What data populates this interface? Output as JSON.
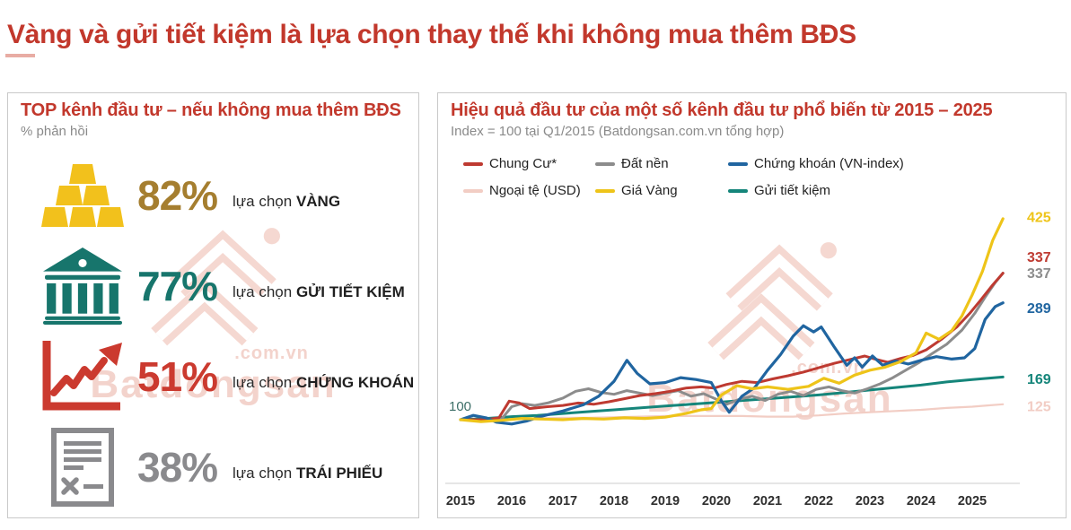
{
  "page_title": "Vàng và gửi tiết kiệm là lựa chọn thay thế khi không mua thêm BĐS",
  "colors": {
    "accent_red": "#c2382c",
    "panel_border": "#c9c9c9",
    "watermark_pink": "#f3d3cc",
    "subtitle_gray": "#8a8a8a"
  },
  "watermark": {
    "brand": "Batdongsan",
    "suffix": ".com.vn"
  },
  "left_panel": {
    "title": "TOP kênh đầu tư – nếu không mua thêm BĐS",
    "subtitle": "% phản hồi",
    "items": [
      {
        "percent": "82%",
        "prefix": "lựa chọn",
        "label": "VÀNG",
        "color": "#a57e2f",
        "icon": "gold-bars-icon"
      },
      {
        "percent": "77%",
        "prefix": "lựa chọn",
        "label": "GỬI TIẾT KIỆM",
        "color": "#17756c",
        "icon": "bank-icon"
      },
      {
        "percent": "51%",
        "prefix": "lựa chọn",
        "label": "CHỨNG KHOÁN",
        "color": "#cb3a2f",
        "icon": "stock-chart-icon"
      },
      {
        "percent": "38%",
        "prefix": "lựa chọn",
        "label": "TRÁI PHIẾU",
        "color": "#8a8a8d",
        "icon": "bond-document-icon"
      }
    ]
  },
  "chart_data": {
    "type": "line",
    "title": "Hiệu quả đầu tư của một số kênh đầu tư phổ biến từ 2015 – 2025",
    "subtitle": "Index = 100 tại Q1/2015 (Batdongsan.com.vn tổng hợp)",
    "baseline_label": "100",
    "baseline_value": 100,
    "x_range": [
      2015,
      2025.6
    ],
    "x_ticks": [
      2015,
      2016,
      2017,
      2018,
      2019,
      2020,
      2021,
      2022,
      2023,
      2024,
      2025
    ],
    "grid": false,
    "legend_position": "top",
    "legend": [
      {
        "label": "Chung Cư*",
        "color": "#be3a31"
      },
      {
        "label": "Đất nền",
        "color": "#8c8c8c"
      },
      {
        "label": "Chứng khoán (VN-index)",
        "color": "#2065a0"
      },
      {
        "label": "Ngoại tệ (USD)",
        "color": "#f2cdc4"
      },
      {
        "label": "Giá Vàng",
        "color": "#eec419"
      },
      {
        "label": "Gửi tiết kiệm",
        "color": "#15857a"
      }
    ],
    "series": [
      {
        "name": "Ngoại tệ (USD)",
        "color": "#f2cdc4",
        "stroke_width": 2.2,
        "end_label": 125,
        "end_label_dy": 2,
        "points": [
          [
            2015,
            100
          ],
          [
            2015.5,
            101
          ],
          [
            2016,
            102
          ],
          [
            2016.5,
            102
          ],
          [
            2017,
            103
          ],
          [
            2017.5,
            103
          ],
          [
            2018,
            104
          ],
          [
            2018.5,
            105
          ],
          [
            2019,
            106
          ],
          [
            2019.5,
            106
          ],
          [
            2020,
            106
          ],
          [
            2020.5,
            106
          ],
          [
            2021,
            105
          ],
          [
            2021.5,
            105
          ],
          [
            2022,
            107
          ],
          [
            2022.5,
            110
          ],
          [
            2023,
            112
          ],
          [
            2023.5,
            114
          ],
          [
            2024,
            116
          ],
          [
            2024.5,
            119
          ],
          [
            2025,
            121
          ],
          [
            2025.3,
            123
          ],
          [
            2025.6,
            125
          ]
        ]
      },
      {
        "name": "Gửi tiết kiệm",
        "color": "#15857a",
        "stroke_width": 3,
        "end_label": 169,
        "end_label_dy": 2,
        "points": [
          [
            2015,
            100
          ],
          [
            2015.5,
            102
          ],
          [
            2016,
            105
          ],
          [
            2016.5,
            107
          ],
          [
            2017,
            110
          ],
          [
            2017.5,
            113
          ],
          [
            2018,
            116
          ],
          [
            2018.5,
            119
          ],
          [
            2019,
            122
          ],
          [
            2019.5,
            125
          ],
          [
            2020,
            128
          ],
          [
            2020.5,
            131
          ],
          [
            2021,
            134
          ],
          [
            2021.5,
            137
          ],
          [
            2022,
            140
          ],
          [
            2022.5,
            144
          ],
          [
            2023,
            148
          ],
          [
            2023.5,
            152
          ],
          [
            2024,
            156
          ],
          [
            2024.5,
            161
          ],
          [
            2025,
            165
          ],
          [
            2025.6,
            169
          ]
        ]
      },
      {
        "name": "Đất nền",
        "color": "#8c8c8c",
        "stroke_width": 3,
        "end_label": 337,
        "end_label_dy": 0,
        "points": [
          [
            2015,
            100
          ],
          [
            2015.55,
            100
          ],
          [
            2015.8,
            101
          ],
          [
            2016,
            121
          ],
          [
            2016.2,
            126
          ],
          [
            2016.45,
            123
          ],
          [
            2016.7,
            127
          ],
          [
            2017,
            135
          ],
          [
            2017.25,
            146
          ],
          [
            2017.5,
            150
          ],
          [
            2017.75,
            144
          ],
          [
            2018,
            141
          ],
          [
            2018.25,
            147
          ],
          [
            2018.5,
            143
          ],
          [
            2018.75,
            139
          ],
          [
            2019,
            143
          ],
          [
            2019.25,
            147
          ],
          [
            2019.5,
            138
          ],
          [
            2019.75,
            142
          ],
          [
            2020,
            133
          ],
          [
            2020.2,
            125
          ],
          [
            2020.45,
            133
          ],
          [
            2020.7,
            138
          ],
          [
            2020.95,
            131
          ],
          [
            2021.2,
            141
          ],
          [
            2021.45,
            146
          ],
          [
            2021.7,
            139
          ],
          [
            2021.95,
            149
          ],
          [
            2022.2,
            153
          ],
          [
            2022.45,
            147
          ],
          [
            2022.7,
            143
          ],
          [
            2022.95,
            150
          ],
          [
            2023.2,
            158
          ],
          [
            2023.45,
            168
          ],
          [
            2023.7,
            180
          ],
          [
            2023.95,
            192
          ],
          [
            2024.2,
            206
          ],
          [
            2024.5,
            222
          ],
          [
            2024.8,
            245
          ],
          [
            2025.05,
            272
          ],
          [
            2025.25,
            298
          ],
          [
            2025.45,
            322
          ],
          [
            2025.6,
            337
          ]
        ]
      },
      {
        "name": "Chung Cư*",
        "color": "#be3a31",
        "stroke_width": 3,
        "end_label": 337,
        "end_label_dy": -18,
        "points": [
          [
            2015,
            100
          ],
          [
            2015.5,
            100
          ],
          [
            2015.75,
            103
          ],
          [
            2015.95,
            130
          ],
          [
            2016.15,
            127
          ],
          [
            2016.35,
            118
          ],
          [
            2016.7,
            121
          ],
          [
            2017,
            123
          ],
          [
            2017.3,
            127
          ],
          [
            2017.6,
            125
          ],
          [
            2017.9,
            129
          ],
          [
            2018.2,
            134
          ],
          [
            2018.5,
            139
          ],
          [
            2018.8,
            142
          ],
          [
            2019.1,
            146
          ],
          [
            2019.4,
            151
          ],
          [
            2019.7,
            153
          ],
          [
            2019.95,
            151
          ],
          [
            2020.2,
            157
          ],
          [
            2020.5,
            162
          ],
          [
            2020.8,
            160
          ],
          [
            2021.1,
            166
          ],
          [
            2021.4,
            171
          ],
          [
            2021.7,
            177
          ],
          [
            2022,
            184
          ],
          [
            2022.3,
            191
          ],
          [
            2022.6,
            197
          ],
          [
            2022.9,
            203
          ],
          [
            2023.1,
            198
          ],
          [
            2023.35,
            193
          ],
          [
            2023.6,
            199
          ],
          [
            2023.85,
            204
          ],
          [
            2024.1,
            213
          ],
          [
            2024.4,
            230
          ],
          [
            2024.7,
            250
          ],
          [
            2024.95,
            272
          ],
          [
            2025.15,
            292
          ],
          [
            2025.4,
            318
          ],
          [
            2025.6,
            337
          ]
        ]
      },
      {
        "name": "Chứng khoán (VN-index)",
        "color": "#2065a0",
        "stroke_width": 3.2,
        "end_label": 289,
        "end_label_dy": 6,
        "points": [
          [
            2015,
            100
          ],
          [
            2015.25,
            107
          ],
          [
            2015.5,
            103
          ],
          [
            2015.7,
            96
          ],
          [
            2016,
            93
          ],
          [
            2016.3,
            98
          ],
          [
            2016.6,
            106
          ],
          [
            2017,
            114
          ],
          [
            2017.4,
            124
          ],
          [
            2017.7,
            138
          ],
          [
            2018,
            162
          ],
          [
            2018.25,
            196
          ],
          [
            2018.45,
            175
          ],
          [
            2018.7,
            158
          ],
          [
            2019,
            160
          ],
          [
            2019.3,
            168
          ],
          [
            2019.6,
            165
          ],
          [
            2019.9,
            160
          ],
          [
            2020.1,
            130
          ],
          [
            2020.25,
            112
          ],
          [
            2020.5,
            138
          ],
          [
            2020.75,
            152
          ],
          [
            2021,
            180
          ],
          [
            2021.25,
            205
          ],
          [
            2021.5,
            235
          ],
          [
            2021.7,
            252
          ],
          [
            2021.9,
            242
          ],
          [
            2022.05,
            250
          ],
          [
            2022.3,
            218
          ],
          [
            2022.55,
            188
          ],
          [
            2022.7,
            200
          ],
          [
            2022.85,
            185
          ],
          [
            2023.05,
            203
          ],
          [
            2023.25,
            188
          ],
          [
            2023.5,
            195
          ],
          [
            2023.75,
            190
          ],
          [
            2024,
            196
          ],
          [
            2024.3,
            202
          ],
          [
            2024.6,
            198
          ],
          [
            2024.85,
            200
          ],
          [
            2025.05,
            215
          ],
          [
            2025.25,
            262
          ],
          [
            2025.45,
            283
          ],
          [
            2025.6,
            289
          ]
        ]
      },
      {
        "name": "Giá Vàng",
        "color": "#eec419",
        "stroke_width": 3.2,
        "end_label": 425,
        "end_label_dy": -2,
        "points": [
          [
            2015,
            100
          ],
          [
            2015.4,
            97
          ],
          [
            2015.8,
            99
          ],
          [
            2016.2,
            102
          ],
          [
            2016.6,
            101
          ],
          [
            2017,
            100
          ],
          [
            2017.4,
            102
          ],
          [
            2017.8,
            101
          ],
          [
            2018.2,
            103
          ],
          [
            2018.6,
            102
          ],
          [
            2019,
            104
          ],
          [
            2019.4,
            110
          ],
          [
            2019.7,
            116
          ],
          [
            2019.9,
            118
          ],
          [
            2020.1,
            140
          ],
          [
            2020.4,
            155
          ],
          [
            2020.7,
            150
          ],
          [
            2021,
            153
          ],
          [
            2021.4,
            149
          ],
          [
            2021.8,
            154
          ],
          [
            2022.1,
            167
          ],
          [
            2022.4,
            159
          ],
          [
            2022.7,
            172
          ],
          [
            2023,
            180
          ],
          [
            2023.3,
            185
          ],
          [
            2023.6,
            194
          ],
          [
            2023.9,
            208
          ],
          [
            2024.1,
            240
          ],
          [
            2024.35,
            230
          ],
          [
            2024.6,
            244
          ],
          [
            2024.8,
            268
          ],
          [
            2025,
            302
          ],
          [
            2025.2,
            340
          ],
          [
            2025.4,
            390
          ],
          [
            2025.6,
            425
          ]
        ]
      }
    ]
  }
}
